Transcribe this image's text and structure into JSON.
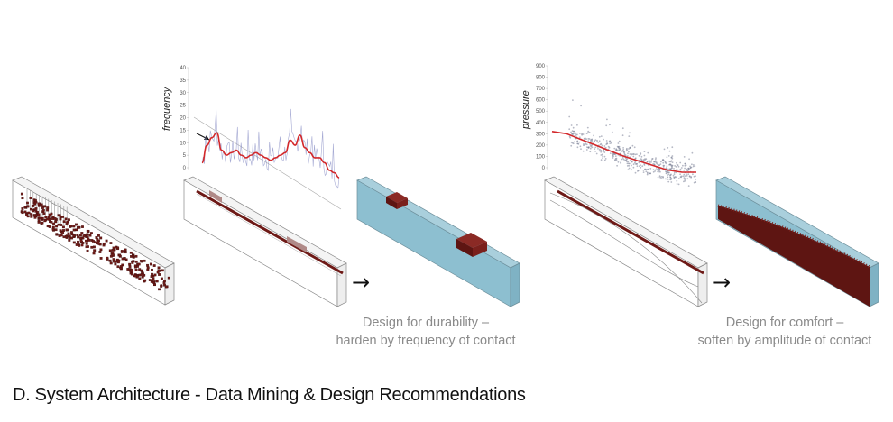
{
  "title": "D. System Architecture - Data Mining & Design Recommendations",
  "colors": {
    "dark_red": "#6e1a17",
    "red_line": "#d3282b",
    "blue_fill": "#8dbfd0",
    "blue_data": "#8f93c8",
    "scatter": "#7a7f96"
  },
  "arrow_symbol": "→",
  "caption_durability": {
    "line1": "Design for durability –",
    "line2": "harden by frequency of contact"
  },
  "caption_comfort": {
    "line1": "Design for comfort –",
    "line2": "soften by amplitude of contact"
  },
  "chart_data": [
    {
      "type": "line",
      "ylabel": "frequency",
      "yticks": [
        "0",
        "5",
        "10",
        "15",
        "20",
        "25",
        "30",
        "35",
        "40"
      ],
      "ylim": [
        0,
        40
      ],
      "series": [
        {
          "values": [
            2,
            9,
            12,
            14,
            7,
            5,
            6,
            7,
            5,
            4,
            5,
            6,
            5,
            4,
            3,
            4,
            5,
            6,
            11,
            9,
            13,
            8,
            6,
            4,
            4,
            2,
            -1,
            -2,
            -4
          ]
        }
      ]
    },
    {
      "type": "scatter",
      "ylabel": "pressure",
      "yticks": [
        "0",
        "100",
        "200",
        "300",
        "400",
        "500",
        "600",
        "700",
        "800",
        "900"
      ],
      "ylim": [
        0,
        900
      ],
      "trend": [
        [
          0,
          320
        ],
        [
          0.1,
          300
        ],
        [
          0.2,
          250
        ],
        [
          0.3,
          200
        ],
        [
          0.4,
          150
        ],
        [
          0.5,
          100
        ],
        [
          0.6,
          60
        ],
        [
          0.7,
          20
        ],
        [
          0.8,
          -20
        ],
        [
          0.9,
          -40
        ],
        [
          1.0,
          -40
        ]
      ]
    }
  ]
}
